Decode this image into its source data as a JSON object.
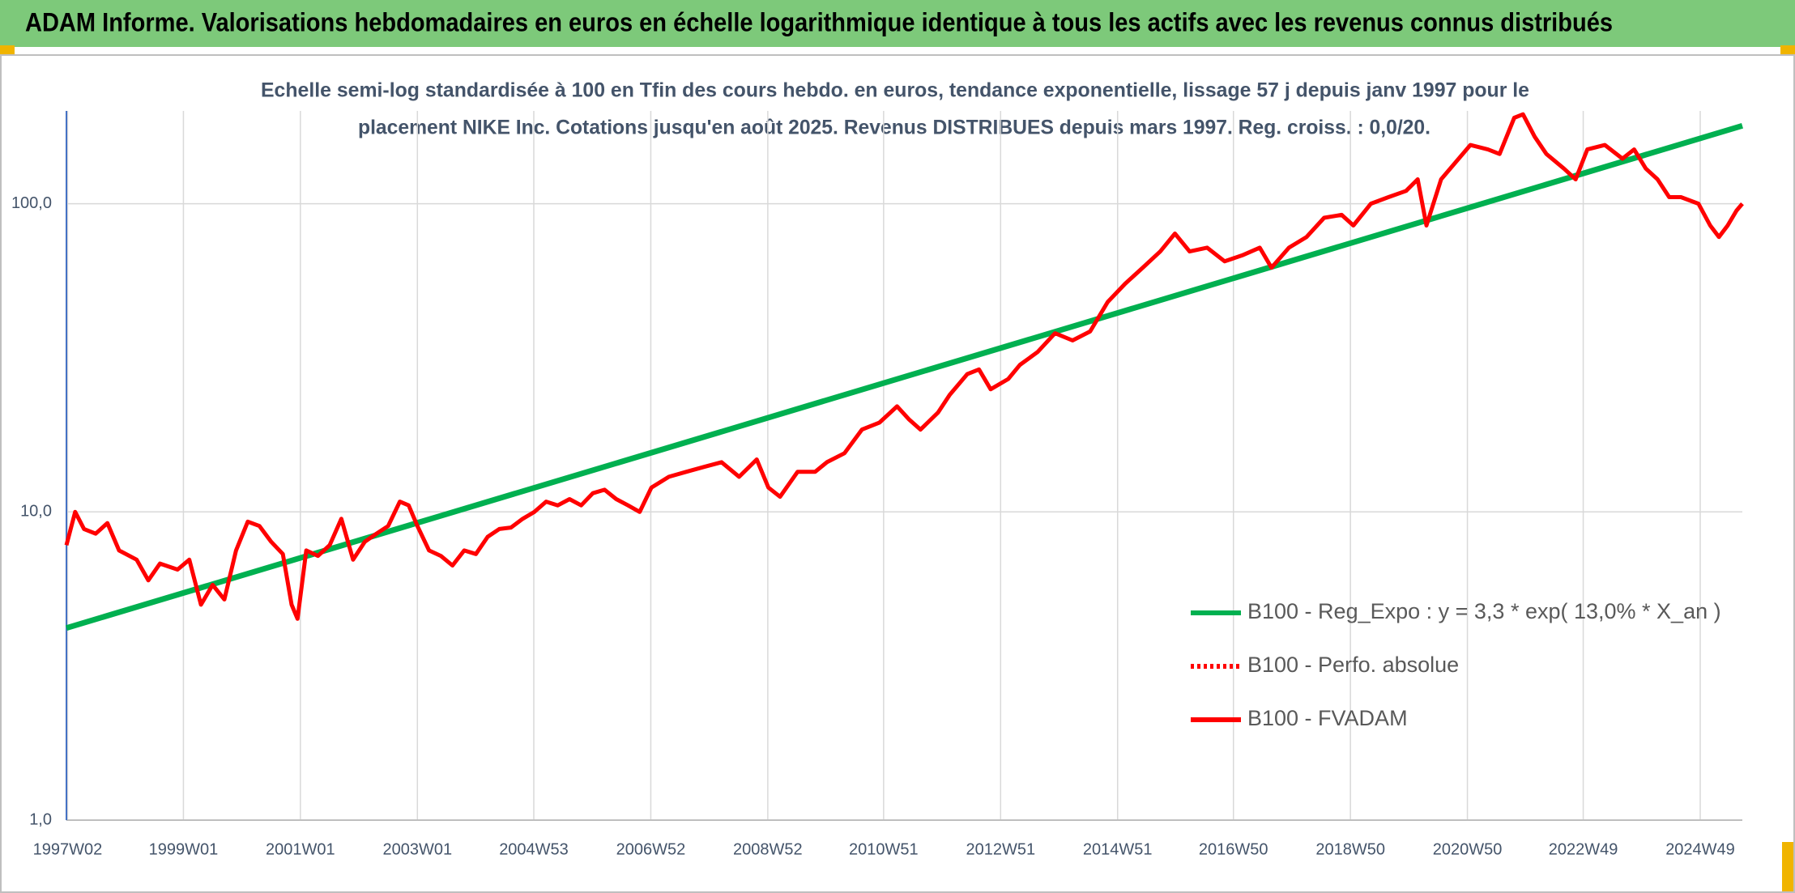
{
  "chart_data": {
    "type": "line",
    "title": "ADAM Informe. Valorisations hebdomadaires en euros en échelle logarithmique identique à tous les actifs avec les revenus connus distribués",
    "subtitle": [
      "Echelle semi-log standardisée à 100 en Tfin des cours hebdo. en euros, tendance exponentielle, lissage 57 j depuis janv 1997 pour le",
      "placement NIKE Inc. Cotations jusqu'en août 2025. Revenus DISTRIBUES depuis mars 1997. Reg. croiss. : 0,0/20."
    ],
    "log_scale": true,
    "grid": true,
    "legend": "lower right",
    "xlim": [
      1997.0,
      2025.65
    ],
    "xticks": [
      {
        "value": 1997.02,
        "label": "1997W02"
      },
      {
        "value": 1999.0,
        "label": "1999W01"
      },
      {
        "value": 2001.0,
        "label": "2001W01"
      },
      {
        "value": 2003.0,
        "label": "2003W01"
      },
      {
        "value": 2004.99,
        "label": "2004W53"
      },
      {
        "value": 2006.99,
        "label": "2006W52"
      },
      {
        "value": 2008.99,
        "label": "2008W52"
      },
      {
        "value": 2010.97,
        "label": "2010W51"
      },
      {
        "value": 2012.97,
        "label": "2012W51"
      },
      {
        "value": 2014.97,
        "label": "2014W51"
      },
      {
        "value": 2016.95,
        "label": "2016W50"
      },
      {
        "value": 2018.95,
        "label": "2018W50"
      },
      {
        "value": 2020.95,
        "label": "2020W50"
      },
      {
        "value": 2022.93,
        "label": "2022W49"
      },
      {
        "value": 2024.93,
        "label": "2024W49"
      }
    ],
    "ylim": [
      1,
      200
    ],
    "yticks": [
      {
        "value": 1,
        "label": "1,0"
      },
      {
        "value": 10,
        "label": "10,0"
      },
      {
        "value": 100,
        "label": "100,0"
      }
    ],
    "series": [
      {
        "name": "B100 - Reg_Expo : y = 3,3 * exp( 13,0% *  X_an )",
        "color": "#00b050",
        "style": "solid",
        "x": [
          1997.0,
          2025.65
        ],
        "values": [
          4.2,
          179
        ]
      },
      {
        "name": "B100 - Perfo. absolue",
        "color": "#ff0000",
        "style": "dotted",
        "x": [],
        "values": []
      },
      {
        "name": "B100 - FVADAM",
        "color": "#ff0000",
        "style": "solid",
        "x": [
          1997.0,
          1997.15,
          1997.3,
          1997.5,
          1997.7,
          1997.9,
          1998.2,
          1998.4,
          1998.6,
          1998.9,
          1999.1,
          1999.3,
          1999.5,
          1999.7,
          1999.9,
          2000.1,
          2000.3,
          2000.5,
          2000.7,
          2000.85,
          2000.95,
          2001.1,
          2001.3,
          2001.5,
          2001.7,
          2001.9,
          2002.1,
          2002.3,
          2002.5,
          2002.7,
          2002.85,
          2003.0,
          2003.2,
          2003.4,
          2003.6,
          2003.8,
          2004.0,
          2004.2,
          2004.4,
          2004.6,
          2004.8,
          2005.0,
          2005.2,
          2005.4,
          2005.6,
          2005.8,
          2006.0,
          2006.2,
          2006.4,
          2006.6,
          2006.8,
          2007.0,
          2007.3,
          2007.6,
          2007.9,
          2008.2,
          2008.5,
          2008.8,
          2009.0,
          2009.2,
          2009.5,
          2009.8,
          2010.0,
          2010.3,
          2010.6,
          2010.9,
          2011.2,
          2011.4,
          2011.6,
          2011.9,
          2012.1,
          2012.4,
          2012.6,
          2012.8,
          2013.1,
          2013.3,
          2013.6,
          2013.9,
          2014.2,
          2014.5,
          2014.8,
          2015.1,
          2015.4,
          2015.7,
          2015.95,
          2016.2,
          2016.5,
          2016.8,
          2017.1,
          2017.4,
          2017.6,
          2017.9,
          2018.2,
          2018.5,
          2018.8,
          2019.0,
          2019.3,
          2019.6,
          2019.9,
          2020.1,
          2020.25,
          2020.5,
          2020.8,
          2021.0,
          2021.3,
          2021.5,
          2021.75,
          2021.9,
          2022.1,
          2022.3,
          2022.6,
          2022.8,
          2023.0,
          2023.3,
          2023.6,
          2023.8,
          2024.0,
          2024.2,
          2024.4,
          2024.6,
          2024.9,
          2025.1,
          2025.25,
          2025.4,
          2025.55,
          2025.65
        ],
        "values": [
          7.8,
          10.0,
          8.8,
          8.5,
          9.2,
          7.5,
          7.0,
          6.0,
          6.8,
          6.5,
          7.0,
          5.0,
          5.8,
          5.2,
          7.5,
          9.3,
          9.0,
          8.0,
          7.3,
          5.0,
          4.5,
          7.5,
          7.2,
          7.8,
          9.5,
          7.0,
          8.0,
          8.5,
          9.0,
          10.8,
          10.5,
          9.0,
          7.5,
          7.2,
          6.7,
          7.5,
          7.3,
          8.3,
          8.8,
          8.9,
          9.5,
          10.0,
          10.8,
          10.5,
          11.0,
          10.5,
          11.5,
          11.8,
          11.0,
          10.5,
          10.0,
          12.0,
          13.0,
          13.5,
          14.0,
          14.5,
          13.0,
          14.8,
          12.0,
          11.2,
          13.5,
          13.5,
          14.5,
          15.5,
          18.5,
          19.5,
          22.0,
          20.0,
          18.5,
          21.0,
          24.0,
          28.0,
          29.0,
          25.0,
          27.0,
          30.0,
          33.0,
          38.0,
          36.0,
          38.5,
          48.0,
          55.0,
          62.0,
          70.0,
          80.0,
          70.0,
          72.0,
          65.0,
          68.0,
          72.0,
          62.0,
          72.0,
          78.0,
          90.0,
          92.0,
          85.0,
          100.0,
          105.0,
          110.0,
          120.0,
          85.0,
          120.0,
          140.0,
          155.0,
          150.0,
          145.0,
          190.0,
          195.0,
          165.0,
          145.0,
          130.0,
          120.0,
          150.0,
          155.0,
          140.0,
          150.0,
          130.0,
          120.0,
          105.0,
          105.0,
          100.0,
          85.0,
          78.0,
          85.0,
          95.0,
          100.0
        ]
      }
    ]
  }
}
